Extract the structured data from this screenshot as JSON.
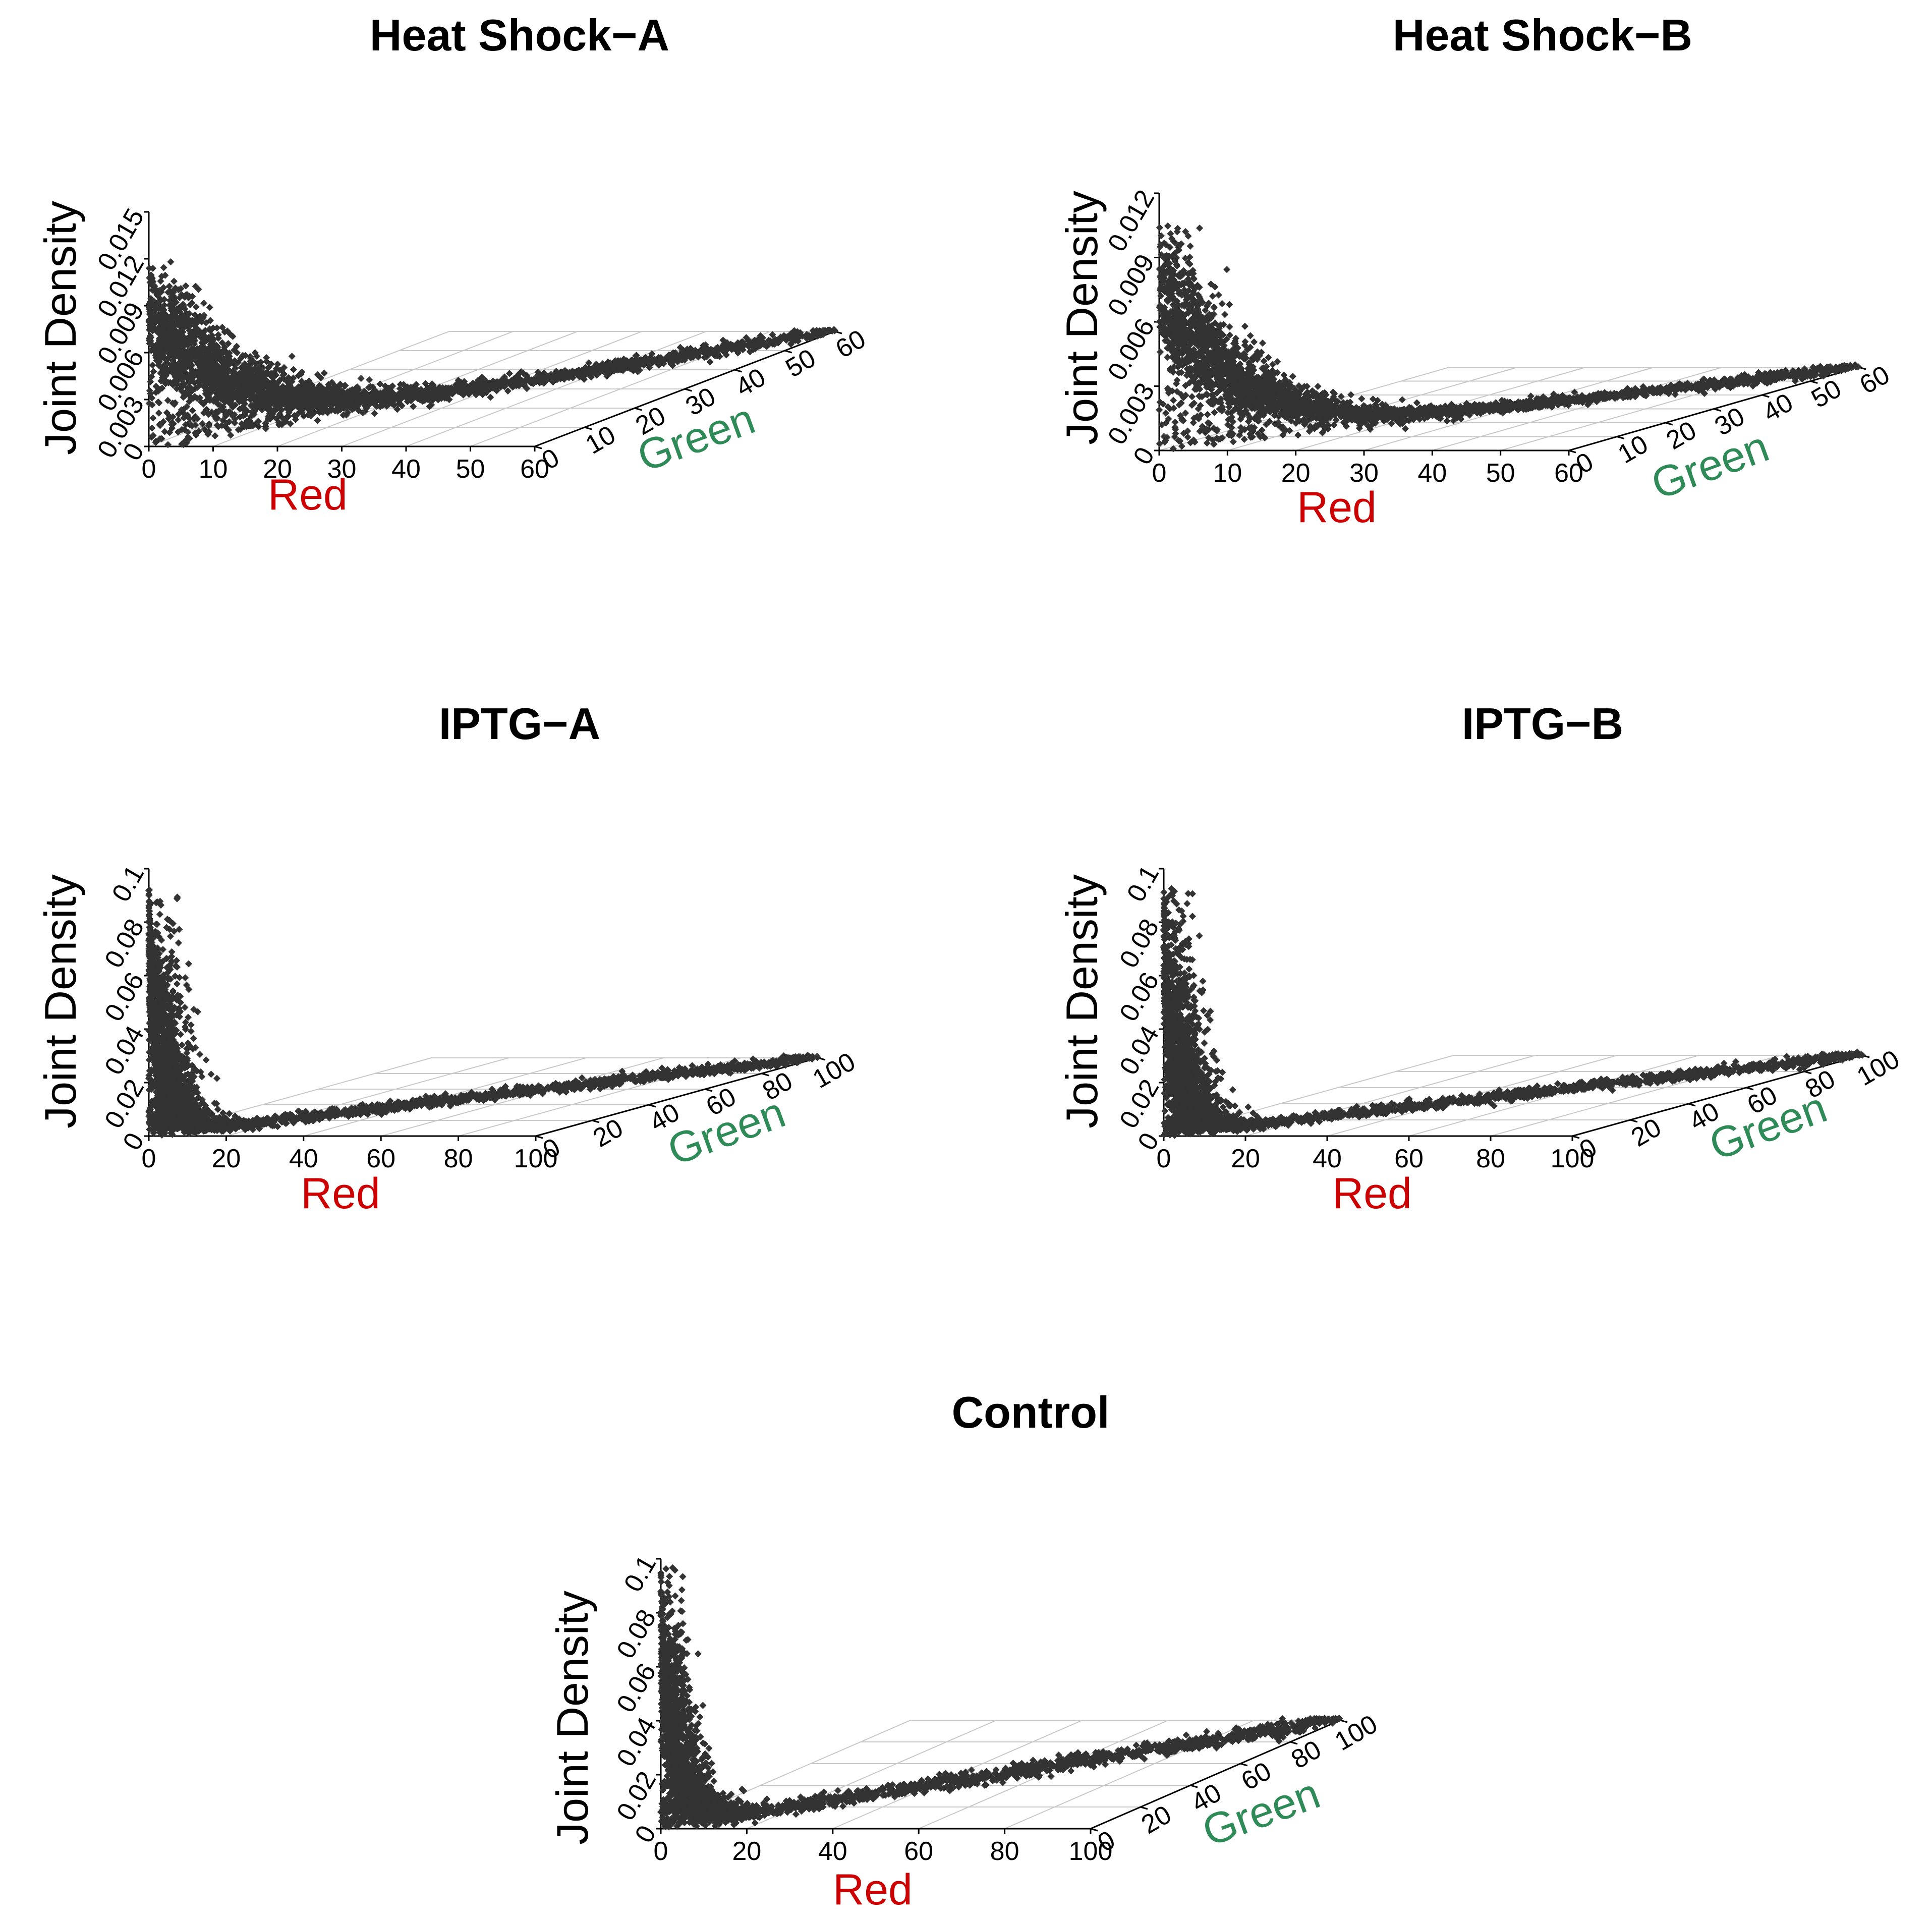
{
  "colors": {
    "points": "#333333",
    "red_label": "#CC0000",
    "green_label": "#2E8B57",
    "grid": "#c8c8c8"
  },
  "chart_data": [
    {
      "type": "scatter",
      "projection": "3d",
      "title": "Heat Shock−A",
      "xlabel": "Red",
      "ylabel": "Green",
      "zlabel": "Joint Density",
      "xlim": [
        0,
        60
      ],
      "ylim": [
        0,
        60
      ],
      "zlim": [
        0,
        0.015
      ],
      "xticks": [
        "0",
        "10",
        "20",
        "30",
        "40",
        "50",
        "60"
      ],
      "yticks": [
        "0",
        "10",
        "20",
        "30",
        "40",
        "50",
        "60"
      ],
      "zticks": [
        "0",
        "0.003",
        "0.006",
        "0.009",
        "0.012",
        "0.015"
      ],
      "zmax": 0.0115,
      "decay": 7.5
    },
    {
      "type": "scatter",
      "projection": "3d",
      "title": "Heat Shock−B",
      "xlabel": "Red",
      "ylabel": "Green",
      "zlabel": "Joint Density",
      "xlim": [
        0,
        60
      ],
      "ylim": [
        0,
        60
      ],
      "zlim": [
        0,
        0.012
      ],
      "xticks": [
        "0",
        "10",
        "20",
        "30",
        "40",
        "50",
        "60"
      ],
      "yticks": [
        "0",
        "10",
        "20",
        "30",
        "40",
        "50",
        "60"
      ],
      "zticks": [
        "0",
        "0.003",
        "0.006",
        "0.009",
        "0.012"
      ],
      "zmax": 0.0105,
      "decay": 6.5
    },
    {
      "type": "scatter",
      "projection": "3d",
      "title": "IPTG−A",
      "xlabel": "Red",
      "ylabel": "Green",
      "zlabel": "Joint Density",
      "xlim": [
        0,
        100
      ],
      "ylim": [
        0,
        100
      ],
      "zlim": [
        0,
        0.1
      ],
      "xticks": [
        "0",
        "20",
        "40",
        "60",
        "80",
        "100"
      ],
      "yticks": [
        "0",
        "20",
        "40",
        "60",
        "80",
        "100"
      ],
      "zticks": [
        "0",
        "0.02",
        "0.04",
        "0.06",
        "0.08",
        "0.1"
      ],
      "zmax": 0.092,
      "decay": 2.2
    },
    {
      "type": "scatter",
      "projection": "3d",
      "title": "IPTG−B",
      "xlabel": "Red",
      "ylabel": "Green",
      "zlabel": "Joint Density",
      "xlim": [
        0,
        100
      ],
      "ylim": [
        0,
        100
      ],
      "zlim": [
        0,
        0.1
      ],
      "xticks": [
        "0",
        "20",
        "40",
        "60",
        "80",
        "100"
      ],
      "yticks": [
        "0",
        "20",
        "40",
        "60",
        "80",
        "100"
      ],
      "zticks": [
        "0",
        "0.02",
        "0.04",
        "0.06",
        "0.08",
        "0.1"
      ],
      "zmax": 0.092,
      "decay": 2.2
    },
    {
      "type": "scatter",
      "projection": "3d",
      "title": "Control",
      "xlabel": "Red",
      "ylabel": "Green",
      "zlabel": "Joint Density",
      "xlim": [
        0,
        100
      ],
      "ylim": [
        0,
        100
      ],
      "zlim": [
        0,
        0.1
      ],
      "xticks": [
        "0",
        "20",
        "40",
        "60",
        "80",
        "100"
      ],
      "yticks": [
        "0",
        "20",
        "40",
        "60",
        "80",
        "100"
      ],
      "zticks": [
        "0",
        "0.02",
        "0.04",
        "0.06",
        "0.08",
        "0.1"
      ],
      "zmax": 0.095,
      "decay": 2.4
    }
  ]
}
